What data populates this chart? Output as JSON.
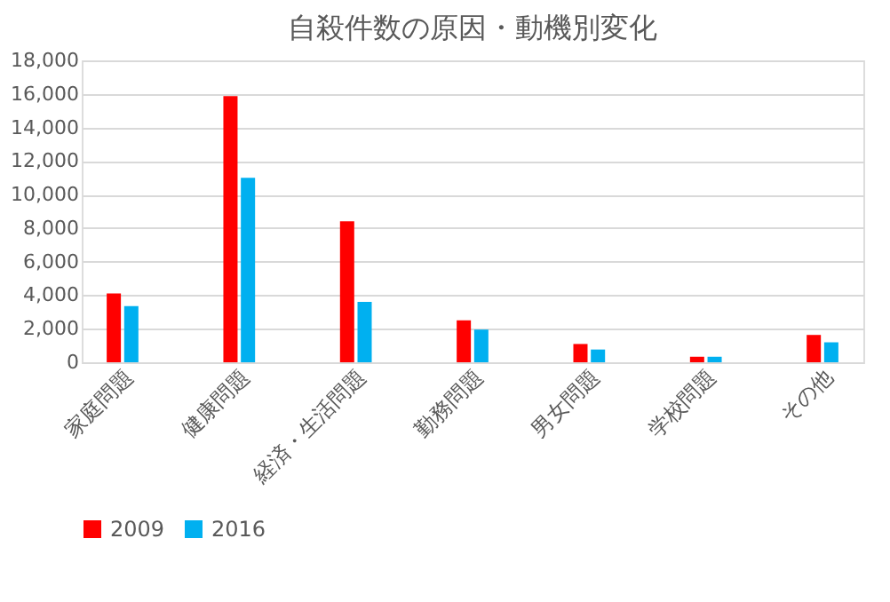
{
  "chart_data": {
    "type": "bar",
    "title": "自殺件数の原因・動機別変化",
    "categories": [
      "家庭問題",
      "健康問題",
      "経済・生活問題",
      "勤務問題",
      "男女問題",
      "学校問題",
      "その他"
    ],
    "series": [
      {
        "name": "2009",
        "color": "#ff0000",
        "values": [
          4100,
          15870,
          8400,
          2500,
          1090,
          330,
          1630
        ]
      },
      {
        "name": "2016",
        "color": "#00b0f0",
        "values": [
          3350,
          11000,
          3600,
          1950,
          760,
          330,
          1190
        ]
      }
    ],
    "ylim": [
      0,
      18000
    ],
    "yticks": [
      {
        "value": 0,
        "label": "0"
      },
      {
        "value": 2000,
        "label": "2,000"
      },
      {
        "value": 4000,
        "label": "4,000"
      },
      {
        "value": 6000,
        "label": "6,000"
      },
      {
        "value": 8000,
        "label": "8,000"
      },
      {
        "value": 10000,
        "label": "10,000"
      },
      {
        "value": 12000,
        "label": "12,000"
      },
      {
        "value": 14000,
        "label": "14,000"
      },
      {
        "value": 16000,
        "label": "16,000"
      },
      {
        "value": 18000,
        "label": "18,000"
      }
    ],
    "grid": "y",
    "legend": "bottom"
  }
}
